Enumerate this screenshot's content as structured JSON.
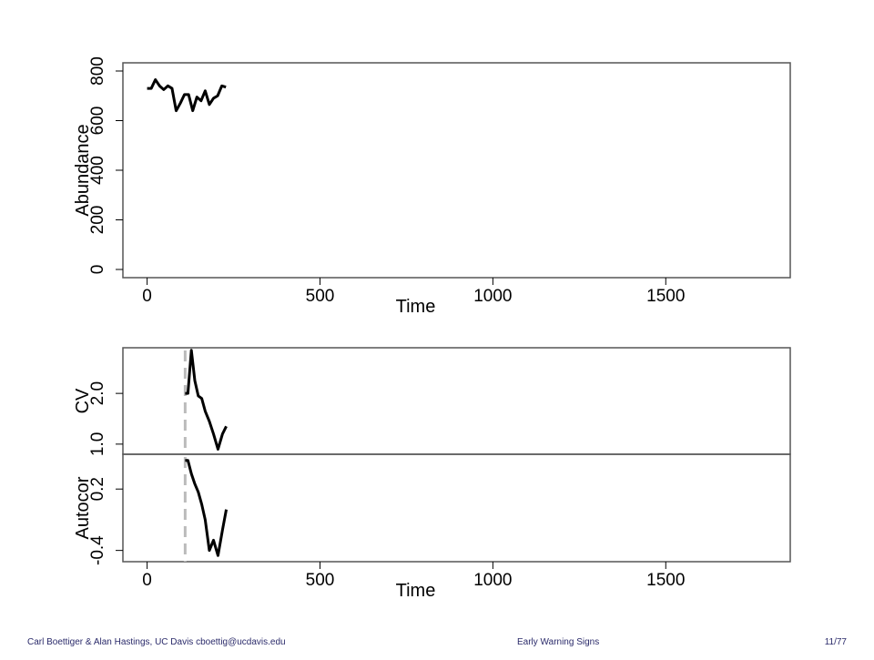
{
  "chart_data": [
    {
      "type": "line",
      "y_label": "Abundance",
      "x_label": "Time",
      "x": [
        0,
        12,
        24,
        36,
        48,
        60,
        72,
        84,
        96,
        108,
        120,
        132,
        144,
        156,
        168,
        180,
        192,
        204,
        216,
        228
      ],
      "values": [
        730,
        730,
        765,
        740,
        725,
        740,
        730,
        640,
        670,
        705,
        705,
        640,
        695,
        680,
        720,
        665,
        690,
        700,
        740,
        735
      ],
      "color": "#000000",
      "xlim": [
        -70,
        1860
      ],
      "xticks": [
        0,
        500,
        1000,
        1500
      ],
      "ylim": [
        -33,
        833
      ],
      "yticks": [
        0,
        200,
        400,
        600,
        800
      ]
    },
    {
      "type": "line",
      "y_label": "CV",
      "x": [
        110,
        118,
        128,
        138,
        148,
        158,
        168,
        180,
        192,
        205,
        218,
        229
      ],
      "values": [
        2.0,
        2.0,
        2.85,
        2.25,
        1.95,
        1.9,
        1.65,
        1.45,
        1.2,
        0.9,
        1.2,
        1.35
      ],
      "color": "#000000",
      "vline": 110,
      "xlim": [
        -70,
        1860
      ],
      "ylim": [
        0.8,
        2.9
      ],
      "yticks": [
        {
          "value": 1,
          "label": "1.0"
        },
        {
          "value": 2,
          "label": "2.0"
        }
      ]
    },
    {
      "type": "line",
      "y_label": "Autocor",
      "x_label": "Time",
      "x": [
        110,
        118,
        128,
        138,
        148,
        158,
        168,
        180,
        192,
        205,
        218,
        229
      ],
      "values": [
        0.48,
        0.48,
        0.35,
        0.25,
        0.17,
        0.05,
        -0.1,
        -0.4,
        -0.3,
        -0.45,
        -0.2,
        0.0
      ],
      "color": "#000000",
      "vline": 110,
      "xlim": [
        -70,
        1860
      ],
      "xticks": [
        0,
        500,
        1000,
        1500
      ],
      "ylim": [
        -0.51,
        0.54
      ],
      "yticks": [
        -0.4,
        0.2
      ]
    }
  ],
  "footer": {
    "left": "Carl Boettiger & Alan Hastings, UC Davis cboettig@ucdavis.edu",
    "center": "Early Warning Signs",
    "right": "11/77"
  }
}
